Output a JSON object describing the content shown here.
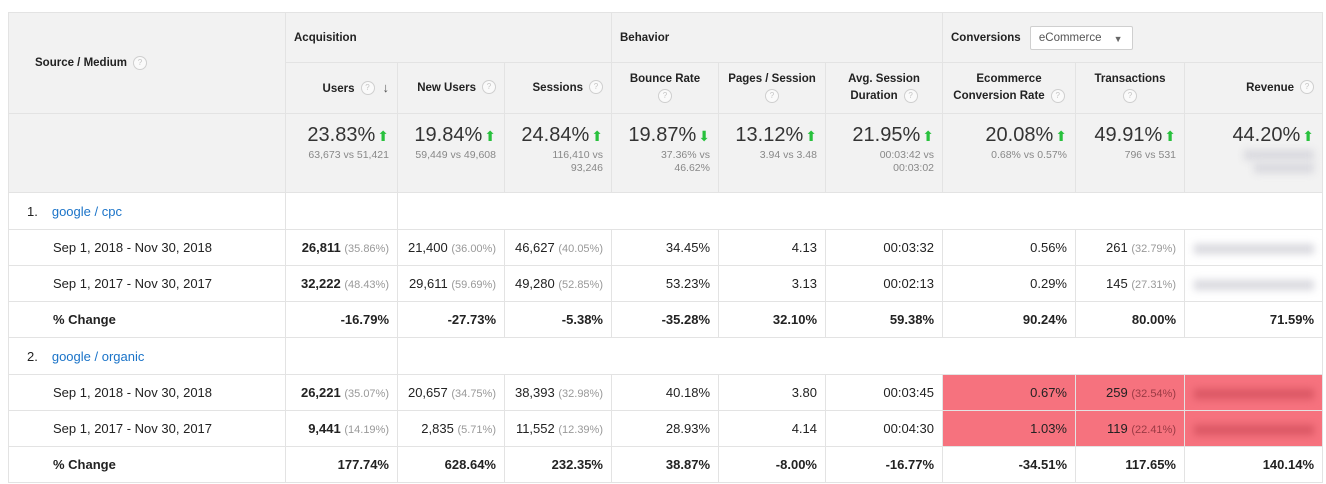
{
  "header": {
    "dimension_label": "Source / Medium",
    "groups": {
      "acquisition": "Acquisition",
      "behavior": "Behavior",
      "conversions": "Conversions",
      "conversions_dropdown": "eCommerce"
    },
    "columns": {
      "users": "Users",
      "new_users": "New Users",
      "sessions": "Sessions",
      "bounce_rate": "Bounce Rate",
      "pages_session": "Pages / Session",
      "avg_duration_1": "Avg. Session",
      "avg_duration_2": "Duration",
      "conv_rate_1": "Ecommerce",
      "conv_rate_2": "Conversion Rate",
      "transactions": "Transactions",
      "revenue": "Revenue"
    },
    "help_glyph": "?"
  },
  "totals": {
    "users": {
      "pct": "23.83%",
      "cmp": "63,673 vs 51,421"
    },
    "new_users": {
      "pct": "19.84%",
      "cmp": "59,449 vs 49,608"
    },
    "sessions": {
      "pct": "24.84%",
      "cmp1": "116,410 vs",
      "cmp2": "93,246"
    },
    "bounce_rate": {
      "pct": "19.87%",
      "cmp1": "37.36% vs",
      "cmp2": "46.62%"
    },
    "pages_session": {
      "pct": "13.12%",
      "cmp": "3.94 vs 3.48"
    },
    "avg_duration": {
      "pct": "21.95%",
      "cmp1": "00:03:42 vs",
      "cmp2": "00:03:02"
    },
    "conv_rate": {
      "pct": "20.08%",
      "cmp": "0.68% vs 0.57%"
    },
    "transactions": {
      "pct": "49.91%",
      "cmp": "796 vs 531"
    },
    "revenue": {
      "pct": "44.20%"
    }
  },
  "groups": [
    {
      "index": "1.",
      "name": "google / cpc",
      "rows": [
        {
          "label": "Sep 1, 2018 - Nov 30, 2018",
          "users": "26,811",
          "users_share": "(35.86%)",
          "new_users": "21,400",
          "new_users_share": "(36.00%)",
          "sessions": "46,627",
          "sessions_share": "(40.05%)",
          "bounce": "34.45%",
          "pages": "4.13",
          "duration": "00:03:32",
          "conv": "0.56%",
          "trans": "261",
          "trans_share": "(32.79%)"
        },
        {
          "label": "Sep 1, 2017 - Nov 30, 2017",
          "users": "32,222",
          "users_share": "(48.43%)",
          "new_users": "29,611",
          "new_users_share": "(59.69%)",
          "sessions": "49,280",
          "sessions_share": "(52.85%)",
          "bounce": "53.23%",
          "pages": "3.13",
          "duration": "00:02:13",
          "conv": "0.29%",
          "trans": "145",
          "trans_share": "(27.31%)"
        }
      ],
      "change": {
        "label": "% Change",
        "users": "-16.79%",
        "new_users": "-27.73%",
        "sessions": "-5.38%",
        "bounce": "-35.28%",
        "pages": "32.10%",
        "duration": "59.38%",
        "conv": "90.24%",
        "trans": "80.00%",
        "revenue": "71.59%"
      }
    },
    {
      "index": "2.",
      "name": "google / organic",
      "rows": [
        {
          "label": "Sep 1, 2018 - Nov 30, 2018",
          "users": "26,221",
          "users_share": "(35.07%)",
          "new_users": "20,657",
          "new_users_share": "(34.75%)",
          "sessions": "38,393",
          "sessions_share": "(32.98%)",
          "bounce": "40.18%",
          "pages": "3.80",
          "duration": "00:03:45",
          "conv": "0.67%",
          "trans": "259",
          "trans_share": "(32.54%)"
        },
        {
          "label": "Sep 1, 2017 - Nov 30, 2017",
          "users": "9,441",
          "users_share": "(14.19%)",
          "new_users": "2,835",
          "new_users_share": "(5.71%)",
          "sessions": "11,552",
          "sessions_share": "(12.39%)",
          "bounce": "28.93%",
          "pages": "4.14",
          "duration": "00:04:30",
          "conv": "1.03%",
          "trans": "119",
          "trans_share": "(22.41%)"
        }
      ],
      "change": {
        "label": "% Change",
        "users": "177.74%",
        "new_users": "628.64%",
        "sessions": "232.35%",
        "bounce": "38.87%",
        "pages": "-8.00%",
        "duration": "-16.77%",
        "conv": "-34.51%",
        "trans": "117.65%",
        "revenue": "140.14%"
      }
    }
  ],
  "colors": {
    "highlight": "#f6727e",
    "up_arrow": "#28c13d",
    "link": "#1a73c8"
  }
}
